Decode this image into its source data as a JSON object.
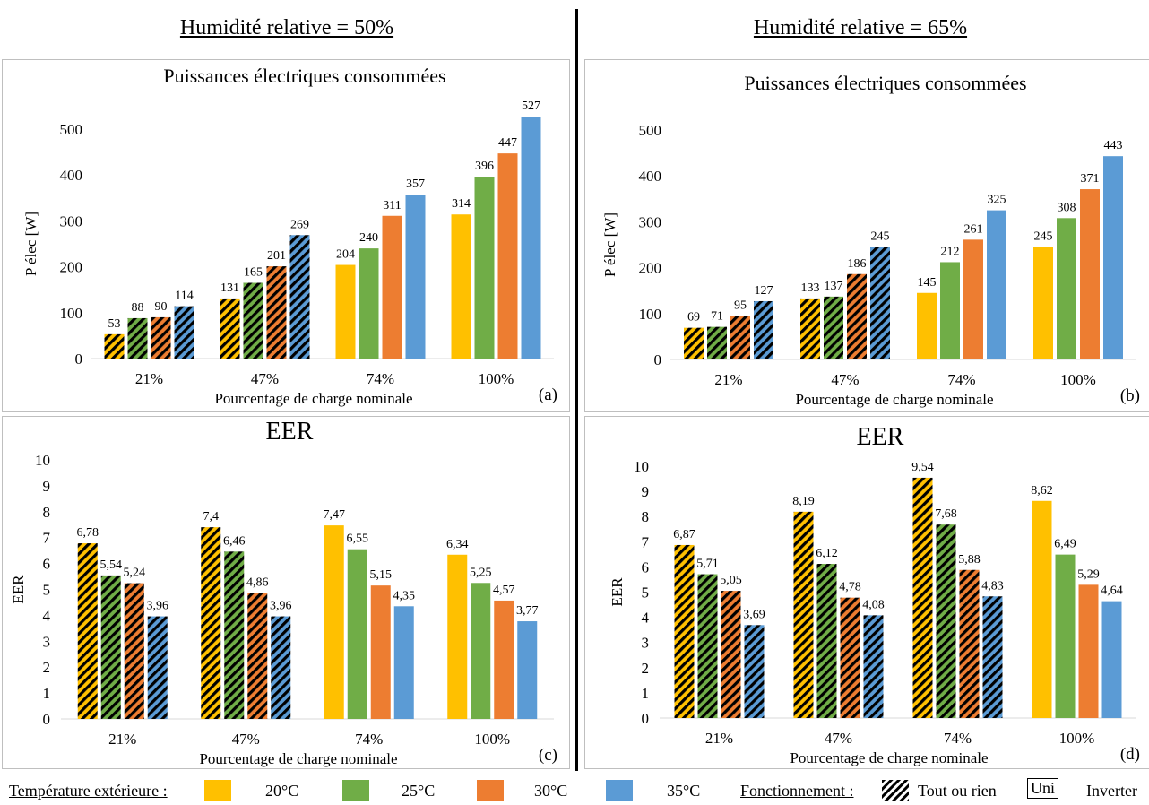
{
  "headings": {
    "left": "Humidité relative = 50%",
    "right": "Humidité relative = 65%"
  },
  "colors": {
    "20C": "#FFC000",
    "25C": "#70AD47",
    "30C": "#ED7D31",
    "35C": "#5B9BD5",
    "frame": "#bfbfbf",
    "grid": "#d9d9d9"
  },
  "legend": {
    "temp_label": "Température extérieure :",
    "t20": "20°C",
    "t25": "25°C",
    "t30": "30°C",
    "t35": "35°C",
    "mode_label": "Fonctionnement :",
    "tor": "Tout ou rien",
    "uni": "Uni",
    "inverter": "Inverter"
  },
  "chart_data": [
    {
      "id": "a",
      "type": "bar",
      "title": "Puissances électriques consommées",
      "xlabel": "Pourcentage de charge nominale",
      "ylabel": "P élec [W]",
      "panel_label": "(a)",
      "categories": [
        "21%",
        "47%",
        "74%",
        "100%"
      ],
      "ylim": [
        0,
        500
      ],
      "yticks": [
        "0",
        "100",
        "200",
        "300",
        "400",
        "500"
      ],
      "grid": false,
      "hatched_categories": [
        "21%",
        "47%"
      ],
      "series": [
        {
          "name": "20°C",
          "values": [
            53,
            131,
            204,
            314
          ]
        },
        {
          "name": "25°C",
          "values": [
            88,
            165,
            240,
            396
          ]
        },
        {
          "name": "30°C",
          "values": [
            90,
            201,
            311,
            447
          ]
        },
        {
          "name": "35°C",
          "values": [
            114,
            269,
            357,
            527
          ]
        }
      ],
      "labels": [
        [
          "53",
          "131",
          "204",
          "314"
        ],
        [
          "88",
          "165",
          "240",
          "396"
        ],
        [
          "90",
          "201",
          "311",
          "447"
        ],
        [
          "114",
          "269",
          "357",
          "527"
        ]
      ]
    },
    {
      "id": "b",
      "type": "bar",
      "title": "Puissances électriques consommées",
      "xlabel": "Pourcentage de charge nominale",
      "ylabel": "P élec [W]",
      "panel_label": "(b)",
      "categories": [
        "21%",
        "47%",
        "74%",
        "100%"
      ],
      "ylim": [
        0,
        500
      ],
      "yticks": [
        "0",
        "100",
        "200",
        "300",
        "400",
        "500"
      ],
      "grid": false,
      "hatched_categories": [
        "21%",
        "47%"
      ],
      "series": [
        {
          "name": "20°C",
          "values": [
            69,
            133,
            145,
            245
          ]
        },
        {
          "name": "25°C",
          "values": [
            71,
            137,
            212,
            308
          ]
        },
        {
          "name": "30°C",
          "values": [
            95,
            186,
            261,
            371
          ]
        },
        {
          "name": "35°C",
          "values": [
            127,
            245,
            325,
            443
          ]
        }
      ],
      "labels": [
        [
          "69",
          "133",
          "145",
          "245"
        ],
        [
          "71",
          "137",
          "212",
          "308"
        ],
        [
          "95",
          "186",
          "261",
          "371"
        ],
        [
          "127",
          "245",
          "325",
          "443"
        ]
      ]
    },
    {
      "id": "c",
      "type": "bar",
      "title": "EER",
      "xlabel": "Pourcentage de charge nominale",
      "ylabel": "EER",
      "panel_label": "(c)",
      "categories": [
        "21%",
        "47%",
        "74%",
        "100%"
      ],
      "ylim": [
        0,
        10
      ],
      "yticks": [
        "0",
        "1",
        "2",
        "3",
        "4",
        "5",
        "6",
        "7",
        "8",
        "9",
        "10"
      ],
      "grid": false,
      "hatched_categories": [
        "21%",
        "47%"
      ],
      "series": [
        {
          "name": "20°C",
          "values": [
            6.78,
            7.4,
            7.47,
            6.34
          ]
        },
        {
          "name": "25°C",
          "values": [
            5.54,
            6.46,
            6.55,
            5.25
          ]
        },
        {
          "name": "30°C",
          "values": [
            5.24,
            4.86,
            5.15,
            4.57
          ]
        },
        {
          "name": "35°C",
          "values": [
            3.96,
            3.96,
            4.35,
            3.77
          ]
        }
      ],
      "labels": [
        [
          "6,78",
          "7,4",
          "7,47",
          "6,34"
        ],
        [
          "5,54",
          "6,46",
          "6,55",
          "5,25"
        ],
        [
          "5,24",
          "4,86",
          "5,15",
          "4,57"
        ],
        [
          "3,96",
          "3,96",
          "4,35",
          "3,77"
        ]
      ]
    },
    {
      "id": "d",
      "type": "bar",
      "title": "EER",
      "xlabel": "Pourcentage de charge nominale",
      "ylabel": "EER",
      "panel_label": "(d)",
      "categories": [
        "21%",
        "47%",
        "74%",
        "100%"
      ],
      "ylim": [
        0,
        10
      ],
      "yticks": [
        "0",
        "1",
        "2",
        "3",
        "4",
        "5",
        "6",
        "7",
        "8",
        "9",
        "10"
      ],
      "grid": false,
      "hatched_categories": [
        "21%",
        "47%",
        "74%"
      ],
      "series": [
        {
          "name": "20°C",
          "values": [
            6.87,
            8.19,
            9.54,
            8.62
          ]
        },
        {
          "name": "25°C",
          "values": [
            5.71,
            6.12,
            7.68,
            6.49
          ]
        },
        {
          "name": "30°C",
          "values": [
            5.05,
            4.78,
            5.88,
            5.29
          ]
        },
        {
          "name": "35°C",
          "values": [
            3.69,
            4.08,
            4.83,
            4.64
          ]
        }
      ],
      "labels": [
        [
          "6,87",
          "8,19",
          "9,54",
          "8,62"
        ],
        [
          "5,71",
          "6,12",
          "7,68",
          "6,49"
        ],
        [
          "5,05",
          "4,78",
          "5,88",
          "5,29"
        ],
        [
          "3,69",
          "4,08",
          "4,83",
          "4,64"
        ]
      ]
    }
  ]
}
